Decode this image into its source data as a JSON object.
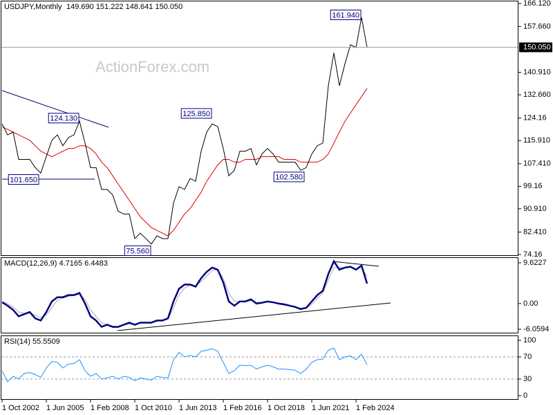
{
  "chart_data": [
    {
      "type": "line",
      "title": "USDJPY,Monthly",
      "subtitle": "149.690 151.222 148.641 150.050",
      "watermark": "ActionForex.com",
      "grid": false,
      "x": [
        "1 Oct 2002",
        "1 Feb 2003",
        "1 Jun 2003",
        "1 Oct 2003",
        "1 Feb 2004",
        "1 Jun 2004",
        "1 Oct 2004",
        "1 Feb 2005",
        "1 Jun 2005",
        "1 Oct 2005",
        "1 Feb 2006",
        "1 Jun 2006",
        "1 Oct 2006",
        "1 Feb 2007",
        "1 Jun 2007",
        "1 Oct 2007",
        "1 Feb 2008",
        "1 Jun 2008",
        "1 Oct 2008",
        "1 Feb 2009",
        "1 Jun 2009",
        "1 Oct 2009",
        "1 Feb 2010",
        "1 Jun 2010",
        "1 Oct 2010",
        "1 Feb 2011",
        "1 Jun 2011",
        "1 Oct 2011",
        "1 Feb 2012",
        "1 Jun 2012",
        "1 Oct 2012",
        "1 Feb 2013",
        "1 Jun 2013",
        "1 Oct 2013",
        "1 Feb 2014",
        "1 Jun 2014",
        "1 Oct 2014",
        "1 Feb 2015",
        "1 Jun 2015",
        "1 Oct 2015",
        "1 Feb 2016",
        "1 Jun 2016",
        "1 Oct 2016",
        "1 Feb 2017",
        "1 Jun 2017",
        "1 Oct 2017",
        "1 Feb 2018",
        "1 Jun 2018",
        "1 Oct 2018",
        "1 Feb 2019",
        "1 Jun 2019",
        "1 Oct 2019",
        "1 Feb 2020",
        "1 Jun 2020",
        "1 Oct 2020",
        "1 Feb 2021",
        "1 Jun 2021",
        "1 Oct 2021",
        "1 Feb 2022",
        "1 Jun 2022",
        "1 Oct 2022",
        "1 Feb 2023",
        "1 Jun 2023",
        "1 Oct 2023",
        "1 Feb 2024",
        "1 Jun 2024",
        "1 Oct 2024"
      ],
      "series": [
        {
          "name": "USDJPY",
          "color": "#000000",
          "values": [
            122,
            118,
            119,
            109,
            109,
            109,
            106,
            104,
            110,
            116,
            118,
            114,
            117,
            118,
            123,
            115,
            106,
            106,
            98,
            98,
            96,
            90,
            89,
            89,
            80,
            82,
            80,
            78,
            81,
            80,
            80,
            93,
            99,
            98,
            102,
            101,
            112,
            119,
            122,
            121,
            113,
            103,
            105,
            112,
            112,
            113,
            107,
            111,
            113,
            111,
            108,
            108,
            108,
            108,
            105,
            106,
            111,
            114,
            115,
            136,
            148,
            136,
            144,
            151,
            150,
            161,
            150.05
          ]
        },
        {
          "name": "MA",
          "color": "#e00000",
          "values": [
            121,
            120,
            119,
            118,
            117,
            116,
            114,
            112,
            111,
            110,
            111,
            112,
            113,
            113,
            114,
            114,
            113,
            111,
            108,
            106,
            103,
            100,
            97,
            94,
            91,
            88,
            86,
            84,
            83,
            82,
            81,
            83,
            86,
            89,
            91,
            94,
            97,
            101,
            104,
            107,
            109,
            109,
            108,
            108,
            109,
            109,
            109,
            110,
            110,
            110,
            110,
            109,
            109,
            109,
            108,
            108,
            108,
            108,
            109,
            111,
            115,
            119,
            123,
            126,
            129,
            132,
            135
          ]
        }
      ],
      "annotations": [
        {
          "x": "1 Jun 2024",
          "value": 161.94,
          "label": "161.940"
        },
        {
          "x": "1 Jun 2007",
          "value": 124.13,
          "label": "124.130"
        },
        {
          "x": "1 Jan 2005",
          "value": 101.65,
          "label": "101.650"
        },
        {
          "x": "1 Jun 2015",
          "value": 125.85,
          "label": "125.850"
        },
        {
          "x": "1 Jan 2021",
          "value": 102.58,
          "label": "102.580"
        },
        {
          "x": "1 Oct 2011",
          "value": 75.56,
          "label": "75.560"
        }
      ],
      "last_price": {
        "value": 150.05,
        "label": "150.050"
      },
      "ylim": [
        74.16,
        166.12
      ],
      "yticks": [
        {
          "value": 166.12,
          "label": "166.120"
        },
        {
          "value": 157.66,
          "label": "157.660"
        },
        {
          "value": 140.91,
          "label": "140.910"
        },
        {
          "value": 132.66,
          "label": "132.660"
        },
        124.16,
        {
          "value": 115.91,
          "label": "115.910"
        },
        {
          "value": 107.41,
          "label": "107.410"
        },
        99.16,
        {
          "value": 90.91,
          "label": "90.910"
        },
        {
          "value": 82.41,
          "label": "82.410"
        },
        74.16
      ]
    },
    {
      "type": "line",
      "title": "MACD(12,26,9) 4.7165 6.4483",
      "grid": false,
      "series": [
        {
          "name": "MACD",
          "color": "#000080",
          "values": [
            0.3,
            -0.5,
            -1.5,
            -3,
            -2.5,
            -2,
            -3.5,
            -4,
            -2,
            0.5,
            1.5,
            1.5,
            2,
            2,
            2.5,
            0,
            -3,
            -4,
            -5.5,
            -5,
            -5.5,
            -5.5,
            -5,
            -4.5,
            -5,
            -4.5,
            -4.5,
            -4.5,
            -4,
            -4,
            -3.5,
            0.5,
            3.5,
            4.5,
            4.5,
            4,
            6,
            7.5,
            8.5,
            8,
            5,
            0.5,
            -0.5,
            0.5,
            0.5,
            1,
            0,
            0.2,
            0.5,
            0.3,
            0,
            -0.2,
            -0.5,
            -0.8,
            -1.3,
            -1,
            0.5,
            2,
            3,
            7,
            10,
            8,
            8.5,
            8.7,
            8,
            9,
            4.7165
          ]
        },
        {
          "name": "Signal",
          "color": "#a9a9a9",
          "values": [
            0.5,
            0,
            -0.8,
            -2,
            -2.3,
            -2.2,
            -2.8,
            -3.3,
            -2.7,
            -1,
            0.8,
            1.3,
            1.7,
            1.9,
            2.2,
            1,
            -1.5,
            -3,
            -4.5,
            -5,
            -5.3,
            -5.4,
            -5.1,
            -4.8,
            -4.9,
            -4.6,
            -4.5,
            -4.5,
            -4.2,
            -4,
            -3.7,
            -1,
            2,
            3.7,
            4.3,
            4.2,
            5.2,
            6.5,
            7.8,
            8,
            6,
            2.5,
            0.5,
            0.5,
            0.5,
            0.7,
            0.3,
            0.3,
            0.4,
            0.3,
            0.1,
            0,
            -0.4,
            -0.7,
            -1.1,
            -1.1,
            -0.2,
            1.2,
            2.5,
            5.5,
            8.5,
            8.5,
            8.5,
            8.6,
            8.2,
            8.4,
            6.4483
          ]
        }
      ],
      "ylim": [
        -6.0594,
        9.6227
      ],
      "yticks": [
        9.6227,
        {
          "value": 0,
          "label": "0.00"
        },
        -6.0594
      ]
    },
    {
      "type": "line",
      "title": "RSI(14) 55.5509",
      "grid": true,
      "series": [
        {
          "name": "RSI",
          "color": "#1e90ff",
          "values": [
            45,
            25,
            35,
            30,
            40,
            42,
            38,
            33,
            50,
            62,
            60,
            50,
            57,
            58,
            65,
            45,
            35,
            40,
            30,
            32,
            35,
            30,
            35,
            33,
            27,
            32,
            30,
            28,
            35,
            33,
            32,
            65,
            78,
            70,
            73,
            70,
            80,
            82,
            85,
            80,
            60,
            40,
            45,
            55,
            54,
            55,
            48,
            52,
            55,
            52,
            48,
            48,
            47,
            46,
            40,
            48,
            60,
            65,
            66,
            82,
            86,
            65,
            70,
            72,
            65,
            75,
            55.5509
          ]
        }
      ],
      "ylim": [
        0,
        100
      ],
      "yticks": [
        100,
        70,
        30,
        0
      ],
      "xticks": [
        "1 Oct 2002",
        "1 Jun 2005",
        "1 Feb 2008",
        "1 Oct 2010",
        "1 Jun 2013",
        "1 Feb 2016",
        "1 Oct 2018",
        "1 Jun 2021",
        "1 Feb 2024"
      ]
    }
  ]
}
